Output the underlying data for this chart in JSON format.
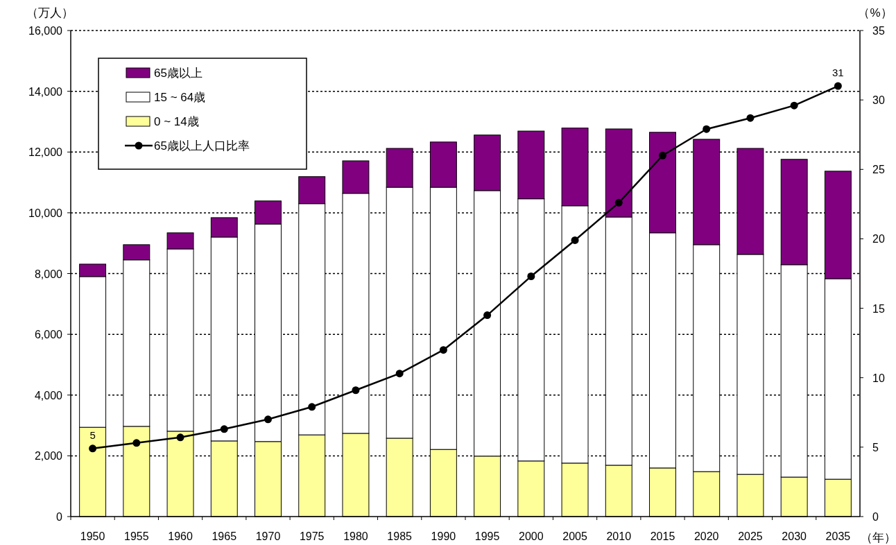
{
  "chart_data": {
    "type": "bar",
    "stacked": true,
    "categories": [
      "1950",
      "1955",
      "1960",
      "1965",
      "1970",
      "1975",
      "1980",
      "1985",
      "1990",
      "1995",
      "2000",
      "2005",
      "2010",
      "2015",
      "2020",
      "2025",
      "2030",
      "2035"
    ],
    "series": [
      {
        "name": "0 ~ 14歳",
        "color": "#ffff99",
        "values": [
          2940,
          2970,
          2810,
          2490,
          2470,
          2690,
          2740,
          2580,
          2210,
          1990,
          1830,
          1760,
          1690,
          1600,
          1480,
          1390,
          1300,
          1230
        ]
      },
      {
        "name": "15 ~ 64歳",
        "color": "#ffffff",
        "values": [
          4960,
          5480,
          6000,
          6710,
          7160,
          7610,
          7900,
          8260,
          8630,
          8740,
          8630,
          8470,
          8170,
          7740,
          7470,
          7240,
          6990,
          6600
        ]
      },
      {
        "name": "65歳以上",
        "color": "#800080",
        "values": [
          410,
          500,
          530,
          640,
          760,
          890,
          1070,
          1280,
          1490,
          1830,
          2230,
          2560,
          2900,
          3310,
          3470,
          3490,
          3470,
          3540
        ]
      },
      {
        "name": "65歳以上人口比率",
        "type": "line",
        "axis": "y2",
        "color": "#000000",
        "marker": "circle",
        "values": [
          4.9,
          5.3,
          5.7,
          6.3,
          7.0,
          7.9,
          9.1,
          10.3,
          12.0,
          14.5,
          17.3,
          19.9,
          22.6,
          26.0,
          27.9,
          28.7,
          29.6,
          31.0
        ],
        "value_labels": [
          "5",
          null,
          null,
          null,
          null,
          null,
          null,
          null,
          null,
          null,
          null,
          null,
          null,
          null,
          null,
          null,
          null,
          "31"
        ]
      }
    ],
    "ylabel": "（万人）",
    "y2label": "（%）",
    "xlabel": "（年）",
    "ylim": [
      0,
      16000
    ],
    "yticks": [
      0,
      {
        "value": 2000,
        "label": "2,000"
      },
      {
        "value": 4000,
        "label": "4,000"
      },
      {
        "value": 6000,
        "label": "6,000"
      },
      {
        "value": 8000,
        "label": "8,000"
      },
      {
        "value": 10000,
        "label": "10,000"
      },
      {
        "value": 12000,
        "label": "12,000"
      },
      {
        "value": 14000,
        "label": "14,000"
      },
      {
        "value": 16000,
        "label": "16,000"
      }
    ],
    "y2lim": [
      0,
      35
    ],
    "y2ticks": [
      0,
      5,
      10,
      15,
      20,
      25,
      30,
      35
    ],
    "grid": "y",
    "legend": "top left"
  }
}
